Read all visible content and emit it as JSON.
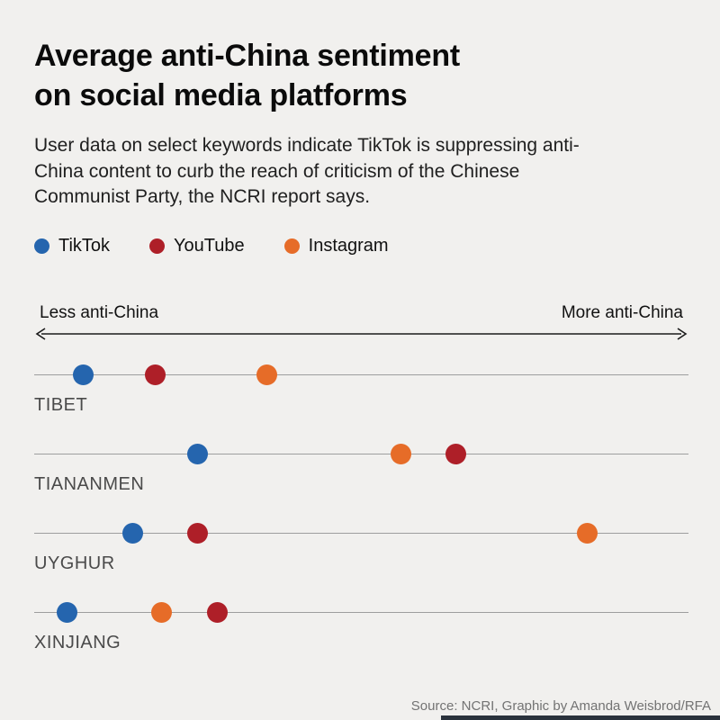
{
  "page": {
    "background": "#f1f0ee",
    "title_line1": "Average anti-China sentiment",
    "title_line2": "on social media platforms",
    "subtitle": "User data on select keywords indicate TikTok is suppressing anti-China content to curb the reach of criticism of the Chinese Communist Party, the NCRI report says.",
    "source": "Source: NCRI, Graphic by Amanda Weisbrod/RFA"
  },
  "axis": {
    "left_label": "Less anti-China",
    "right_label": "More anti-China"
  },
  "chart_data": {
    "type": "scatter",
    "subtype": "dot-plot",
    "title": "Average anti-China sentiment on social media platforms",
    "subtitle": "User data on select keywords indicate TikTok is suppressing anti-China content to curb the reach of criticism of the Chinese Communist Party, the NCRI report says.",
    "x_scale": {
      "type": "relative",
      "range": [
        0,
        1
      ],
      "min_label": "Less anti-China",
      "max_label": "More anti-China",
      "numeric_ticks": false
    },
    "legend_position": "top",
    "grid": false,
    "platforms": [
      {
        "name": "TikTok",
        "color": "#2565ae"
      },
      {
        "name": "YouTube",
        "color": "#ae1f28"
      },
      {
        "name": "Instagram",
        "color": "#e66c28"
      }
    ],
    "rows": [
      {
        "category": "TIBET",
        "points": [
          {
            "platform": "TikTok",
            "value": 0.075
          },
          {
            "platform": "YouTube",
            "value": 0.185
          },
          {
            "platform": "Instagram",
            "value": 0.355
          }
        ]
      },
      {
        "category": "TIANANMEN",
        "points": [
          {
            "platform": "TikTok",
            "value": 0.25
          },
          {
            "platform": "Instagram",
            "value": 0.56
          },
          {
            "platform": "YouTube",
            "value": 0.645
          }
        ]
      },
      {
        "category": "UYGHUR",
        "points": [
          {
            "platform": "TikTok",
            "value": 0.15
          },
          {
            "platform": "YouTube",
            "value": 0.25
          },
          {
            "platform": "Instagram",
            "value": 0.845
          }
        ]
      },
      {
        "category": "XINJIANG",
        "points": [
          {
            "platform": "TikTok",
            "value": 0.05
          },
          {
            "platform": "Instagram",
            "value": 0.195
          },
          {
            "platform": "YouTube",
            "value": 0.28
          }
        ]
      }
    ]
  }
}
